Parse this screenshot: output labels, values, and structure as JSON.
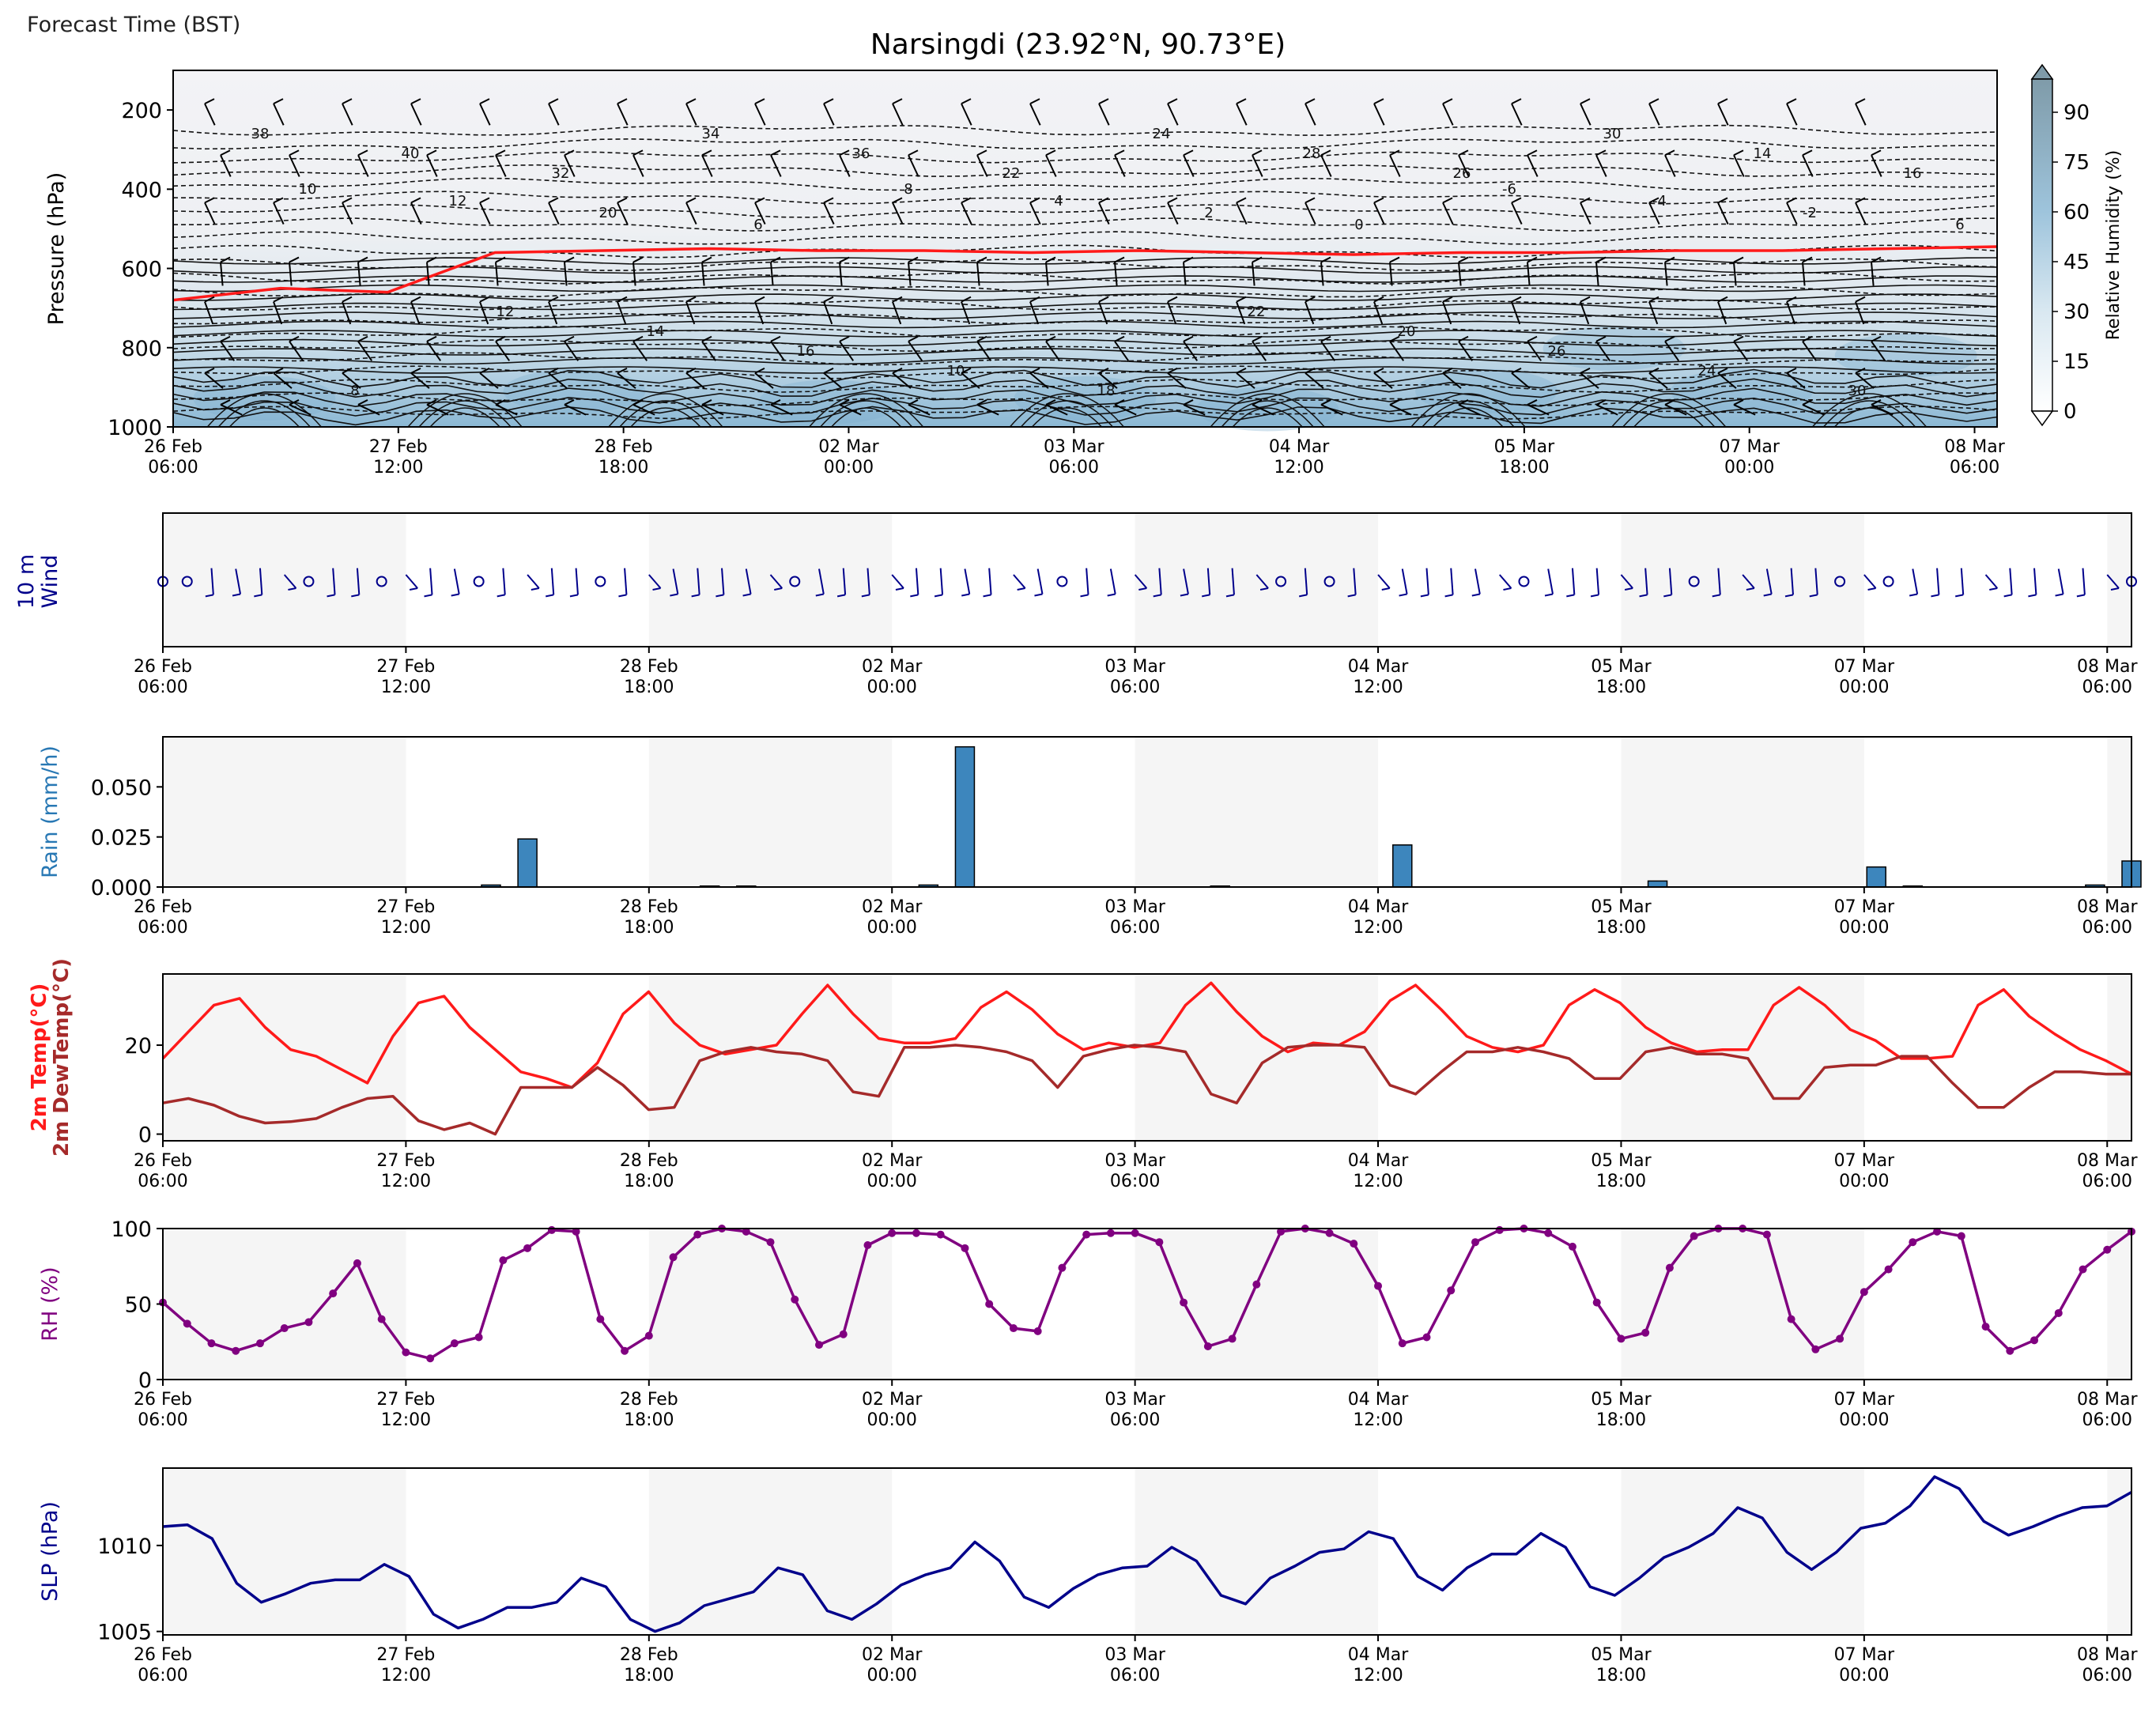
{
  "header": {
    "forecast_time_label": "Forecast Time (BST)",
    "title": "Narsingdi (23.92°N, 90.73°E)"
  },
  "colors": {
    "accent_red": "#ff1a1a",
    "dewpoint": "#a52a2a",
    "rh": "#800080",
    "slp": "#00008b",
    "wind": "#00008b",
    "rain_bar": "#3d86bd",
    "rain_label": "#2878b4",
    "shade": "#f2f2f2"
  },
  "time_ticks": {
    "labels": [
      [
        "26 Feb",
        "06:00"
      ],
      [
        "27 Feb",
        "12:00"
      ],
      [
        "28 Feb",
        "18:00"
      ],
      [
        "02 Mar",
        "00:00"
      ],
      [
        "03 Mar",
        "06:00"
      ],
      [
        "04 Mar",
        "12:00"
      ],
      [
        "05 Mar",
        "18:00"
      ],
      [
        "07 Mar",
        "00:00"
      ],
      [
        "08 Mar",
        "06:00"
      ]
    ]
  },
  "chart_data": [
    {
      "type": "heatmap",
      "name": "cross-section",
      "ylabel": "Pressure (hPa)",
      "yticks": [
        200,
        400,
        600,
        800,
        1000
      ],
      "ylim": [
        1000,
        100
      ],
      "colorbar": {
        "label": "Relative Humidity (%)",
        "ticks": [
          0,
          15,
          30,
          45,
          60,
          75,
          90
        ]
      },
      "contour_labels": [
        "38",
        "40",
        "32",
        "34",
        "36",
        "22",
        "24",
        "28",
        "26",
        "30",
        "14",
        "16",
        "10",
        "12",
        "20",
        "6",
        "8",
        "4",
        "2",
        "0",
        "-6",
        "-4",
        "-2",
        "6",
        "8",
        "12",
        "14",
        "16",
        "10",
        "18",
        "22",
        "20",
        "26",
        "24",
        "30",
        "28"
      ],
      "freezing_level_hpa": [
        680,
        650,
        660,
        560,
        555,
        550,
        555,
        555,
        560,
        555,
        560,
        565,
        560,
        560,
        555,
        555,
        550,
        545
      ]
    },
    {
      "type": "scatter",
      "name": "wind10m",
      "ylabel": "10 m\nWind"
    },
    {
      "type": "bar",
      "name": "rain",
      "ylabel": "Rain (mm/h)",
      "yticks": [
        "0.000",
        "0.025",
        "0.050"
      ],
      "ylim": [
        0,
        0.075
      ],
      "values": [
        {
          "hour": 27,
          "value": 0.001
        },
        {
          "hour": 30,
          "value": 0.024
        },
        {
          "hour": 45,
          "value": 0.0005
        },
        {
          "hour": 48,
          "value": 0.0005
        },
        {
          "hour": 63,
          "value": 0.001
        },
        {
          "hour": 66,
          "value": 0.07
        },
        {
          "hour": 87,
          "value": 0.0005
        },
        {
          "hour": 102,
          "value": 0.021
        },
        {
          "hour": 123,
          "value": 0.003
        },
        {
          "hour": 141,
          "value": 0.01
        },
        {
          "hour": 144,
          "value": 0.0005
        },
        {
          "hour": 159,
          "value": 0.001
        },
        {
          "hour": 162,
          "value": 0.013
        }
      ]
    },
    {
      "type": "line",
      "name": "temperature",
      "ylabel": [
        "2m Temp(°C)",
        "2m DewTemp(°C)"
      ],
      "yticks": [
        0,
        20
      ],
      "ylim": [
        -1.5,
        36
      ],
      "series": [
        {
          "values": [
            17,
            23,
            29,
            30.5,
            24,
            19,
            17.5,
            14.5,
            11.5,
            22,
            29.5,
            31,
            24,
            19,
            14,
            12.5,
            10.5,
            16,
            27,
            32,
            25,
            20,
            18,
            19,
            20,
            27,
            33.5,
            27,
            21.5,
            20.5,
            20.5,
            21.5,
            28.5,
            32,
            28,
            22.5,
            19,
            20.5,
            19.5,
            20.5,
            29,
            34,
            27.5,
            22,
            18.5,
            20.5,
            20,
            23,
            30,
            33.5,
            28,
            22,
            19.5,
            18.5,
            20,
            29,
            32.5,
            29.5,
            24,
            20.5,
            18.5,
            19,
            19,
            29,
            33,
            29,
            23.5,
            21,
            17,
            17,
            17.5,
            29,
            32.5,
            26.5,
            22.5,
            19,
            16.5,
            13.5
          ]
        },
        {
          "values": [
            7,
            8,
            6.5,
            4,
            2.5,
            2.8,
            3.5,
            6,
            8,
            8.5,
            3,
            1,
            2.5,
            0,
            10.5,
            10.5,
            10.5,
            15,
            11,
            5.5,
            6,
            16.5,
            18.5,
            19.5,
            18.5,
            18,
            16.5,
            9.5,
            8.5,
            19.5,
            19.5,
            20,
            19.5,
            18.5,
            16.5,
            10.5,
            17.5,
            19,
            20,
            19.5,
            18.5,
            9,
            7,
            16,
            19.5,
            20,
            20,
            19.5,
            11,
            9,
            14,
            18.5,
            18.5,
            19.5,
            18.5,
            17,
            12.5,
            12.5,
            18.5,
            19.5,
            18,
            18,
            17,
            8,
            8,
            15,
            15.5,
            15.5,
            17.5,
            17.5,
            11.5,
            6,
            6,
            10.5,
            14,
            14,
            13.5,
            13.5
          ]
        }
      ]
    },
    {
      "type": "line",
      "name": "rh",
      "ylabel": "RH (%)",
      "yticks": [
        0,
        50,
        100
      ],
      "ylim": [
        0,
        100
      ],
      "values": [
        51,
        37,
        24,
        19,
        24,
        34,
        38,
        57,
        77,
        40,
        18,
        14,
        24,
        28,
        79,
        87,
        99,
        98,
        40,
        19,
        29,
        81,
        96,
        100,
        98,
        91,
        53,
        23,
        30,
        89,
        97,
        97,
        96,
        87,
        50,
        34,
        32,
        74,
        96,
        97,
        97,
        91,
        51,
        22,
        27,
        63,
        98,
        100,
        97,
        90,
        62,
        24,
        28,
        59,
        91,
        99,
        100,
        97,
        88,
        51,
        27,
        31,
        74,
        95,
        100,
        100,
        96,
        40,
        20,
        27,
        58,
        73,
        91,
        98,
        95,
        35,
        19,
        26,
        44,
        73,
        86,
        98
      ]
    },
    {
      "type": "line",
      "name": "slp",
      "ylabel": "SLP (hPa)",
      "yticks": [
        1005,
        1010
      ],
      "ylim": [
        1004.8,
        1014.5
      ],
      "values": [
        1011.1,
        1011.2,
        1010.4,
        1007.8,
        1006.7,
        1007.2,
        1007.8,
        1008.0,
        1008.0,
        1008.9,
        1008.2,
        1006.0,
        1005.2,
        1005.7,
        1006.4,
        1006.4,
        1006.7,
        1008.1,
        1007.6,
        1005.7,
        1005.0,
        1005.5,
        1006.5,
        1006.9,
        1007.3,
        1008.7,
        1008.3,
        1006.2,
        1005.7,
        1006.6,
        1007.7,
        1008.3,
        1008.7,
        1010.2,
        1009.1,
        1007.0,
        1006.4,
        1007.5,
        1008.3,
        1008.7,
        1008.8,
        1009.9,
        1009.1,
        1007.1,
        1006.6,
        1008.1,
        1008.8,
        1009.6,
        1009.8,
        1010.8,
        1010.4,
        1008.2,
        1007.4,
        1008.7,
        1009.5,
        1009.5,
        1010.7,
        1009.9,
        1007.6,
        1007.1,
        1008.1,
        1009.3,
        1009.9,
        1010.7,
        1012.2,
        1011.6,
        1009.6,
        1008.6,
        1009.6,
        1011.0,
        1011.3,
        1012.3,
        1014.0,
        1013.3,
        1011.4,
        1010.6,
        1011.1,
        1011.7,
        1012.2,
        1012.3,
        1013.1
      ]
    }
  ]
}
